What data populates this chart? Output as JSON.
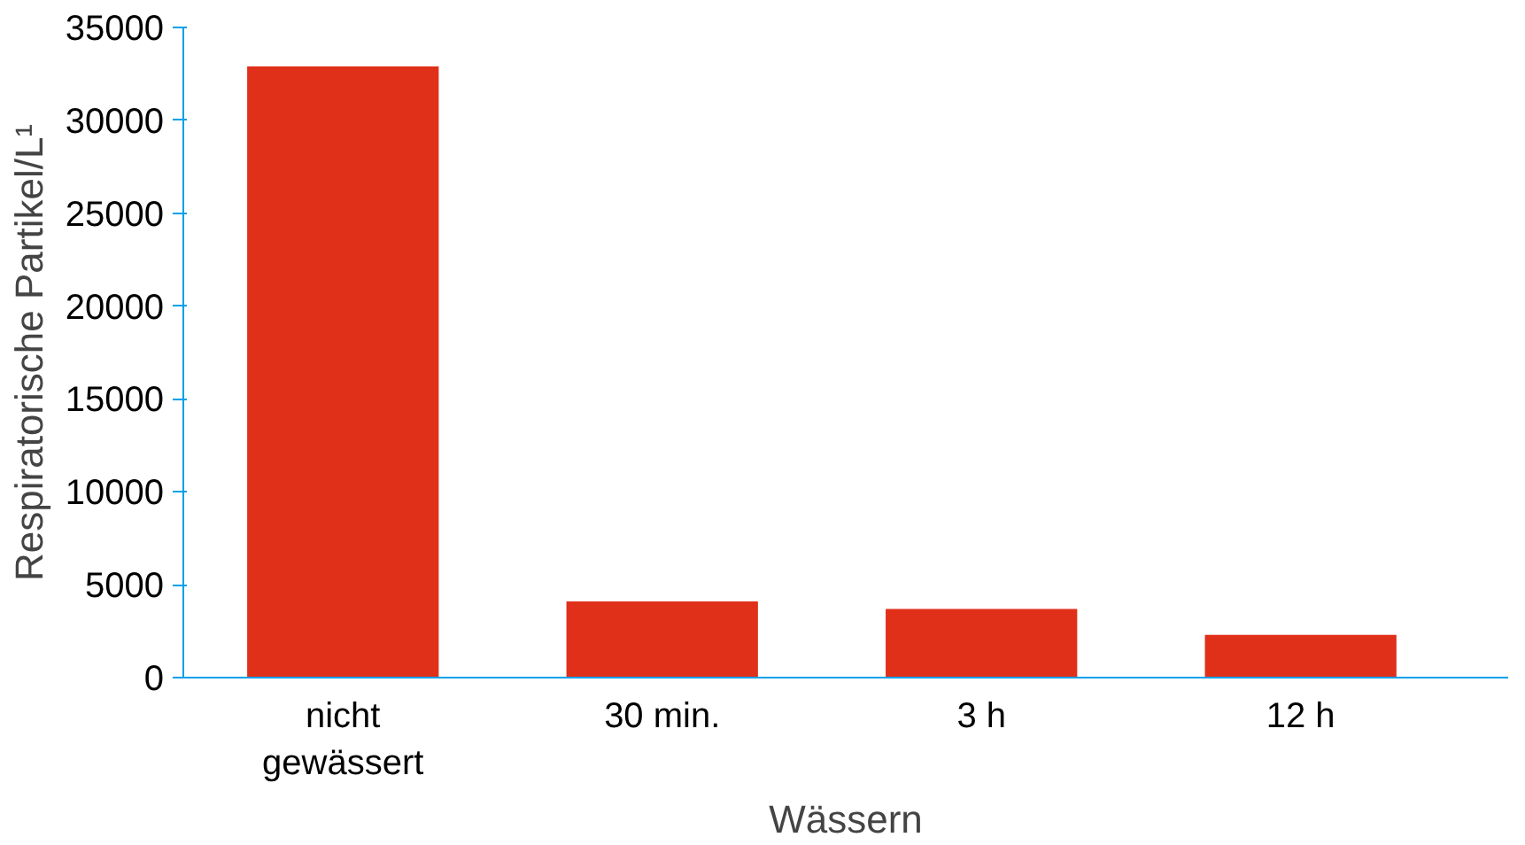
{
  "chart_data": {
    "type": "bar",
    "xlabel": "Wässern",
    "ylabel": "Respiratorische Partikel/L¹",
    "categories": [
      "nicht\ngewässert",
      "30 min.",
      "3 h",
      "12 h"
    ],
    "values": [
      32900,
      4100,
      3700,
      2300
    ],
    "color": "#e0301a",
    "ylim": [
      0,
      35000
    ],
    "yticks": [
      0,
      5000,
      10000,
      15000,
      20000,
      25000,
      30000,
      35000
    ],
    "grid": false
  }
}
